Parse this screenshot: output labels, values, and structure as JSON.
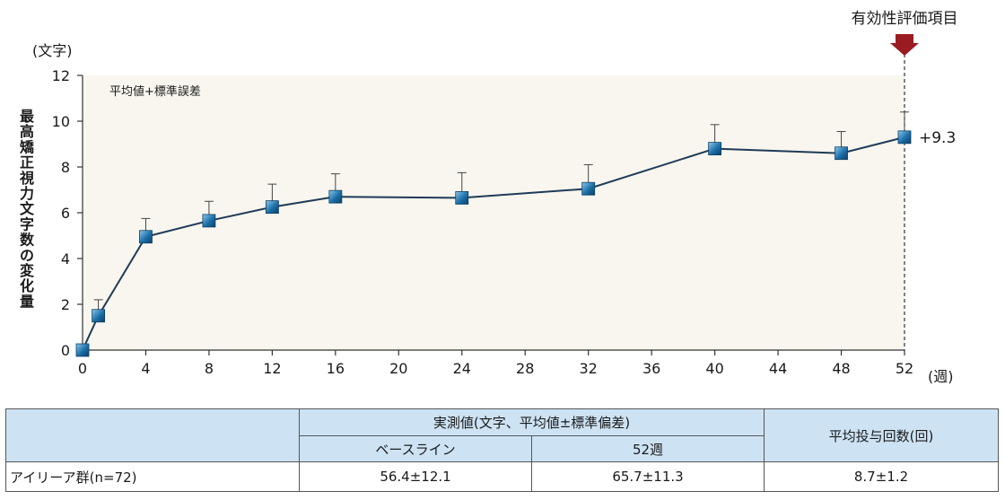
{
  "chart_data": {
    "type": "line",
    "y_unit_label": "(文字)",
    "x_unit_label": "(週)",
    "ylabel": "最高矯正視力文字数の変化量",
    "ylim": [
      0,
      12
    ],
    "xlim": [
      0,
      52
    ],
    "xticks": [
      0,
      4,
      8,
      12,
      16,
      20,
      24,
      28,
      32,
      36,
      40,
      44,
      48,
      52
    ],
    "yticks": [
      0,
      2,
      4,
      6,
      8,
      10,
      12
    ],
    "note": "平均値+標準誤差",
    "annotation": "有効性評価項目",
    "final_label": "+9.3",
    "background_color": "#f8f6ee",
    "line_color": "#1f3b57",
    "marker_color": "#1b6fa8",
    "arrow_color": "#9b1b22",
    "x": [
      0,
      1,
      4,
      8,
      12,
      16,
      24,
      32,
      40,
      48,
      52
    ],
    "y": [
      0,
      1.5,
      4.95,
      5.65,
      6.25,
      6.7,
      6.65,
      7.05,
      8.8,
      8.6,
      9.3
    ],
    "error_upper": [
      0,
      2.2,
      5.75,
      6.5,
      7.25,
      7.7,
      7.75,
      8.1,
      9.85,
      9.55,
      10.4
    ]
  },
  "table": {
    "header_group": "実測値(文字、平均値±標準偏差)",
    "col_baseline": "ベースライン",
    "col_week52": "52週",
    "col_doses": "平均投与回数(回)",
    "row_label": "アイリーア群(n=72)",
    "baseline_value": "56.4±12.1",
    "week52_value": "65.7±11.3",
    "doses_value": "8.7±1.2"
  }
}
